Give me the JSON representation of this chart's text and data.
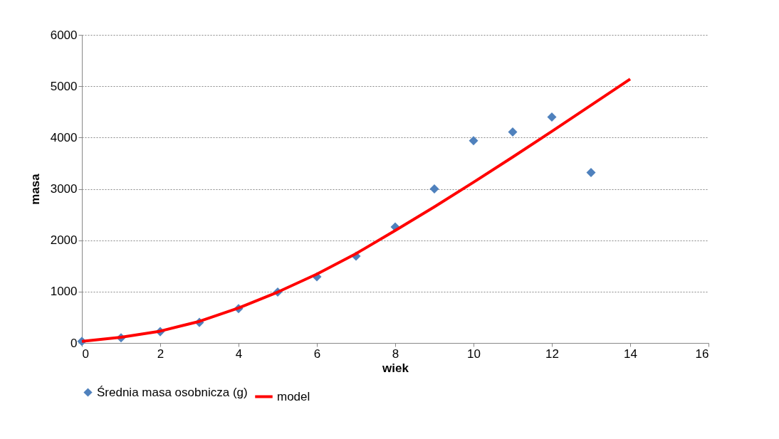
{
  "chart_data": {
    "type": "scatter",
    "xlabel": "wiek",
    "ylabel": "masa",
    "xlim": [
      0,
      16
    ],
    "xticks": [
      0,
      2,
      4,
      6,
      8,
      10,
      12,
      14,
      16
    ],
    "ylim": [
      0,
      6000
    ],
    "yticks": [
      0,
      1000,
      2000,
      3000,
      4000,
      5000,
      6000
    ],
    "grid": "y",
    "legend": "bottom",
    "series": [
      {
        "name": "Średnia masa osobnicza (g)",
        "marker": "diamond",
        "color": "#4f81bd",
        "x": [
          0,
          1,
          2,
          3,
          4,
          5,
          6,
          7,
          8,
          9,
          10,
          11,
          12,
          13
        ],
        "values": [
          30,
          100,
          220,
          400,
          670,
          990,
          1290,
          1690,
          2260,
          3000,
          3940,
          4110,
          4400,
          3320
        ]
      },
      {
        "name": "model",
        "type": "line",
        "marker": "none",
        "color": "#ff0000",
        "x": [
          0,
          1,
          2,
          3,
          4,
          5,
          6,
          7,
          8,
          9,
          10,
          11,
          12,
          13,
          14
        ],
        "values": [
          30,
          110,
          230,
          420,
          680,
          990,
          1340,
          1740,
          2190,
          2650,
          3130,
          3620,
          4120,
          4630,
          5140
        ]
      }
    ]
  }
}
